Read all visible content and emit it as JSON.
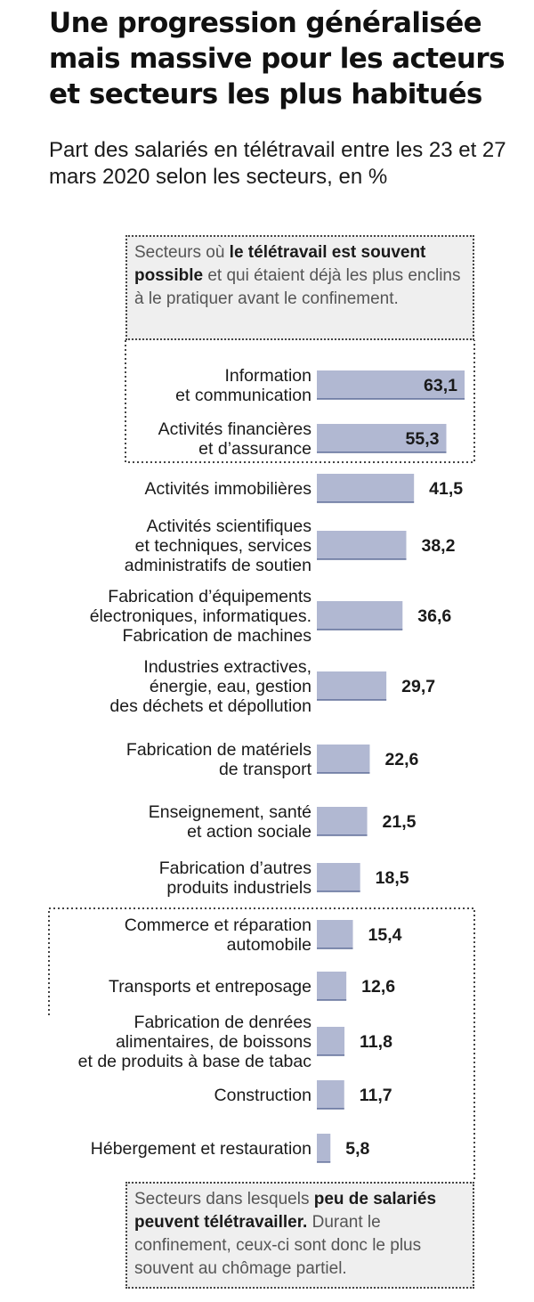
{
  "title": "Une progression généralisée mais massive pour les acteurs et secteurs les plus habitués",
  "subtitle": "Part des salariés en télétravail entre les 23 et 27 mars 2020 selon les secteurs, en %",
  "note_top": {
    "prefix": "Secteurs où ",
    "bold": "le télétravail est souvent possible",
    "suffix": " et qui étaient déjà les plus enclins à le pratiquer avant le confinement."
  },
  "note_bottom": {
    "prefix": "Secteurs dans lesquels ",
    "bold": "peu de salariés peuvent télétravailler.",
    "suffix": " Durant le confinement, ceux-ci sont donc le plus souvent au chômage partiel."
  },
  "colors": {
    "bar": "#b1b8d2",
    "bar_edge": "#4a5a8a",
    "note_bg": "#efefef"
  },
  "chart_data": {
    "type": "bar",
    "orientation": "horizontal",
    "categories": [
      [
        "Information",
        "et communication"
      ],
      [
        "Activités financières",
        "et d’assurance"
      ],
      [
        "Activités immobilières"
      ],
      [
        "Activités scientifiques",
        "et techniques, services",
        "administratifs de soutien"
      ],
      [
        "Fabrication d’équipements",
        "électroniques, informatiques.",
        "Fabrication de machines"
      ],
      [
        "Industries extractives,",
        "énergie, eau, gestion",
        "des déchets et dépollution"
      ],
      [
        "Fabrication de matériels",
        "de transport"
      ],
      [
        "Enseignement, santé",
        "et action sociale"
      ],
      [
        "Fabrication d’autres",
        "produits industriels"
      ],
      [
        "Commerce et réparation",
        "automobile"
      ],
      [
        "Transports et entreposage"
      ],
      [
        "Fabrication de denrées",
        "alimentaires, de boissons",
        "et de produits à base de tabac"
      ],
      [
        "Construction"
      ],
      [
        "Hébergement et restauration"
      ]
    ],
    "values": [
      63.1,
      55.3,
      41.5,
      38.2,
      36.6,
      29.7,
      22.6,
      21.5,
      18.5,
      15.4,
      12.6,
      11.8,
      11.7,
      5.8
    ],
    "labels": [
      "63,1",
      "55,3",
      "41,5",
      "38,2",
      "36,6",
      "29,7",
      "22,6",
      "21,5",
      "18,5",
      "15,4",
      "12,6",
      "11,8",
      "11,7",
      "5,8"
    ],
    "xlim": [
      0,
      63.1
    ],
    "grid": false,
    "legend": "none"
  }
}
